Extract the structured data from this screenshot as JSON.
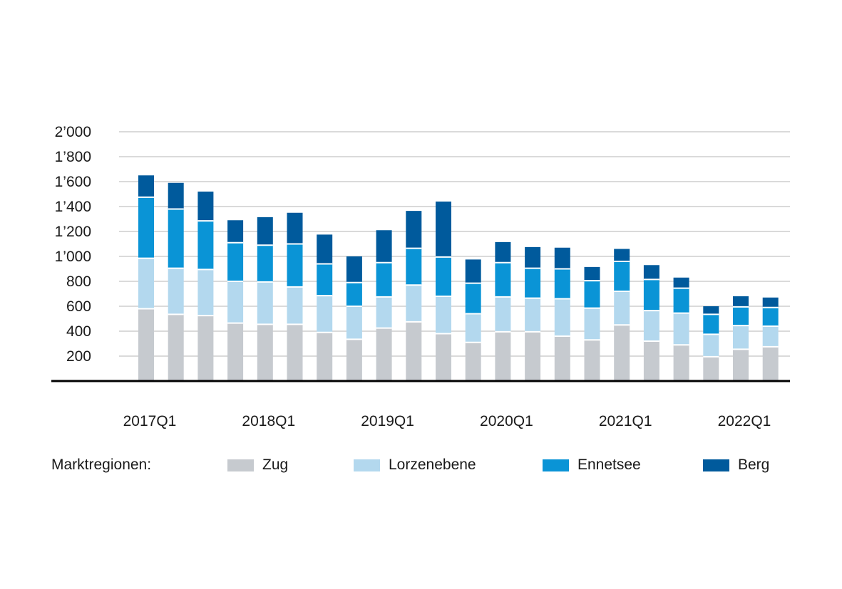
{
  "chart_data": {
    "type": "bar",
    "stacked": true,
    "title": "",
    "xlabel": "",
    "ylabel": "",
    "ylim": [
      0,
      2000
    ],
    "yticks": [
      200,
      400,
      600,
      800,
      1000,
      1200,
      1400,
      1600,
      1800,
      2000
    ],
    "ytick_labels": [
      "200",
      "400",
      "600",
      "800",
      "1’000",
      "1’200",
      "1’400",
      "1’600",
      "1’800",
      "2’000"
    ],
    "categories": [
      "2017Q1",
      "2017Q2",
      "2017Q3",
      "2017Q4",
      "2018Q1",
      "2018Q2",
      "2018Q3",
      "2018Q4",
      "2019Q1",
      "2019Q2",
      "2019Q3",
      "2019Q4",
      "2020Q1",
      "2020Q2",
      "2020Q3",
      "2020Q4",
      "2021Q1",
      "2021Q2",
      "2021Q3",
      "2021Q4",
      "2022Q1",
      "2022Q2"
    ],
    "xtick_labels": [
      "2017Q1",
      "2018Q1",
      "2019Q1",
      "2020Q1",
      "2021Q1",
      "2022Q1"
    ],
    "legend_title": "Marktregionen:",
    "series": [
      {
        "name": "Zug",
        "color": "#c6cacf",
        "values": [
          580,
          535,
          525,
          465,
          455,
          455,
          390,
          335,
          425,
          475,
          380,
          310,
          395,
          395,
          360,
          330,
          450,
          320,
          290,
          195,
          255,
          275
        ]
      },
      {
        "name": "Lorzenebene",
        "color": "#b3d8ee",
        "values": [
          405,
          370,
          370,
          335,
          340,
          300,
          295,
          265,
          250,
          295,
          300,
          230,
          280,
          270,
          300,
          255,
          270,
          245,
          255,
          180,
          190,
          165
        ]
      },
      {
        "name": "Ennetsee",
        "color": "#0a94d6",
        "values": [
          490,
          475,
          390,
          310,
          295,
          345,
          255,
          190,
          275,
          295,
          315,
          245,
          275,
          240,
          240,
          220,
          240,
          250,
          200,
          160,
          150,
          150
        ]
      },
      {
        "name": "Berg",
        "color": "#005a9c",
        "values": [
          175,
          210,
          235,
          180,
          225,
          250,
          235,
          210,
          260,
          300,
          445,
          190,
          165,
          170,
          170,
          110,
          100,
          115,
          85,
          65,
          85,
          80
        ]
      }
    ]
  }
}
